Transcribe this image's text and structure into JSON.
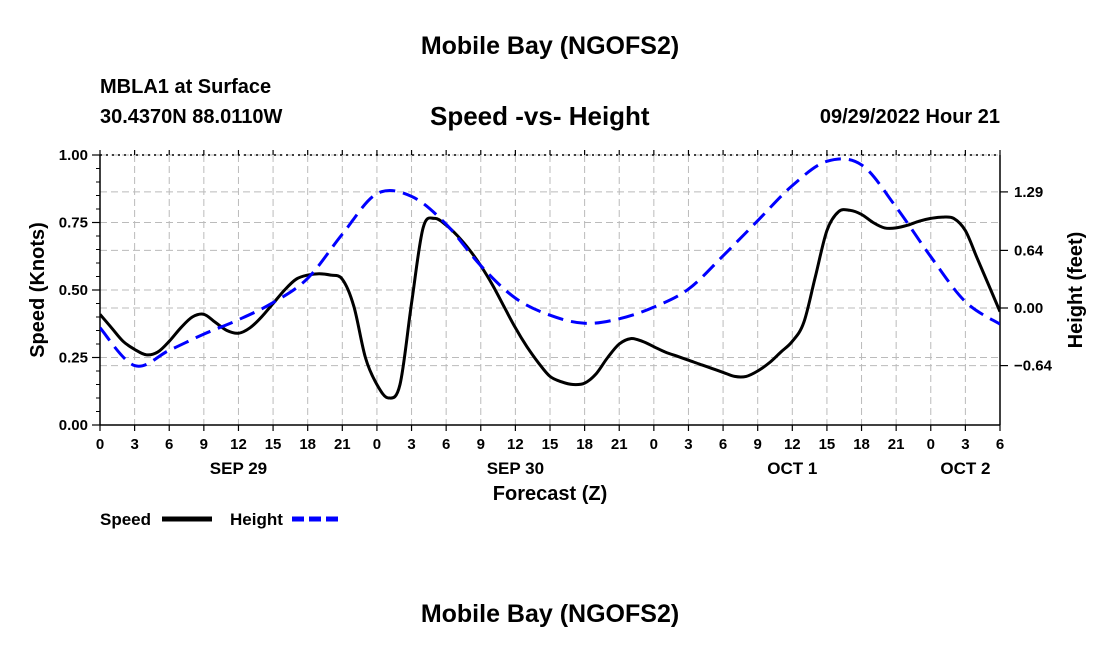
{
  "header": {
    "title": "Mobile Bay (NGOFS2)",
    "station": "MBLA1 at Surface",
    "coords": "30.4370N  88.0110W",
    "subtitle": "Speed -vs- Height",
    "datetime": "09/29/2022 Hour 21",
    "bottom_title": "Mobile Bay (NGOFS2)"
  },
  "legend": {
    "speed_label": "Speed",
    "height_label": "Height"
  },
  "colors": {
    "speed": "#000000",
    "height": "#0000ff",
    "grid": "#bbbbbb"
  },
  "chart_data": {
    "type": "line",
    "xlabel": "Forecast (Z)",
    "x_unit": "hours",
    "xlim": [
      0,
      78
    ],
    "x_tick_step": 3,
    "x_tick_labels": [
      "0",
      "3",
      "6",
      "9",
      "12",
      "15",
      "18",
      "21",
      "0",
      "3",
      "6",
      "9",
      "12",
      "15",
      "18",
      "21",
      "0",
      "3",
      "6",
      "9",
      "12",
      "15",
      "18",
      "21",
      "0",
      "3",
      "6"
    ],
    "date_labels": [
      {
        "label": "SEP 29",
        "x": 12
      },
      {
        "label": "SEP 30",
        "x": 36
      },
      {
        "label": "OCT 1",
        "x": 60
      },
      {
        "label": "OCT 2",
        "x": 75
      }
    ],
    "y_left": {
      "label": "Speed (Knots)",
      "lim": [
        0,
        1
      ],
      "ticks": [
        0,
        0.25,
        0.5,
        0.75,
        1.0
      ],
      "tick_labels": [
        "0.00",
        "0.25",
        "0.50",
        "0.75",
        "1.00"
      ]
    },
    "y_right": {
      "label": "Height (feet)",
      "lim": [
        -1.3,
        1.7
      ],
      "ticks": [
        -0.64,
        0.0,
        0.64,
        1.29
      ],
      "tick_labels": [
        "−0.64",
        "0.00",
        "0.64",
        "1.29"
      ]
    },
    "grid": true,
    "series": [
      {
        "name": "Speed",
        "axis": "left",
        "style": "solid",
        "x": [
          0,
          1,
          2,
          3,
          4,
          5,
          6,
          7,
          8,
          9,
          10,
          11,
          12,
          13,
          14,
          15,
          16,
          17,
          18,
          19,
          20,
          21,
          22,
          23,
          24,
          25,
          26,
          27,
          28,
          29,
          30,
          31,
          32,
          33,
          34,
          35,
          36,
          37,
          38,
          39,
          40,
          41,
          42,
          43,
          44,
          45,
          46,
          47,
          48,
          49,
          50,
          51,
          52,
          53,
          54,
          55,
          56,
          57,
          58,
          59,
          60,
          61,
          62,
          63,
          64,
          65,
          66,
          67,
          68,
          69,
          70,
          71,
          72,
          73,
          74,
          75,
          76,
          77,
          78
        ],
        "y": [
          0.41,
          0.36,
          0.31,
          0.28,
          0.26,
          0.27,
          0.31,
          0.36,
          0.4,
          0.41,
          0.38,
          0.35,
          0.34,
          0.36,
          0.4,
          0.45,
          0.5,
          0.54,
          0.555,
          0.56,
          0.555,
          0.54,
          0.44,
          0.25,
          0.15,
          0.1,
          0.15,
          0.45,
          0.73,
          0.765,
          0.74,
          0.7,
          0.65,
          0.59,
          0.52,
          0.44,
          0.36,
          0.29,
          0.23,
          0.18,
          0.16,
          0.15,
          0.155,
          0.19,
          0.25,
          0.3,
          0.32,
          0.31,
          0.29,
          0.27,
          0.255,
          0.24,
          0.225,
          0.21,
          0.195,
          0.18,
          0.18,
          0.2,
          0.23,
          0.27,
          0.31,
          0.38,
          0.55,
          0.72,
          0.79,
          0.795,
          0.78,
          0.75,
          0.73,
          0.73,
          0.74,
          0.755,
          0.765,
          0.77,
          0.765,
          0.72,
          0.62,
          0.52,
          0.42
        ]
      },
      {
        "name": "Height",
        "axis": "right",
        "style": "dashed",
        "x": [
          0,
          3,
          6,
          9,
          12,
          15,
          18,
          21,
          24,
          27,
          30,
          33,
          36,
          39,
          42,
          45,
          48,
          51,
          54,
          57,
          60,
          63,
          66,
          69,
          72,
          75,
          78
        ],
        "y": [
          -0.22,
          -0.64,
          -0.47,
          -0.29,
          -0.13,
          0.06,
          0.33,
          0.82,
          1.27,
          1.24,
          0.93,
          0.47,
          0.11,
          -0.08,
          -0.17,
          -0.12,
          0.01,
          0.21,
          0.58,
          0.97,
          1.36,
          1.63,
          1.59,
          1.12,
          0.57,
          0.07,
          -0.18
        ]
      }
    ]
  }
}
